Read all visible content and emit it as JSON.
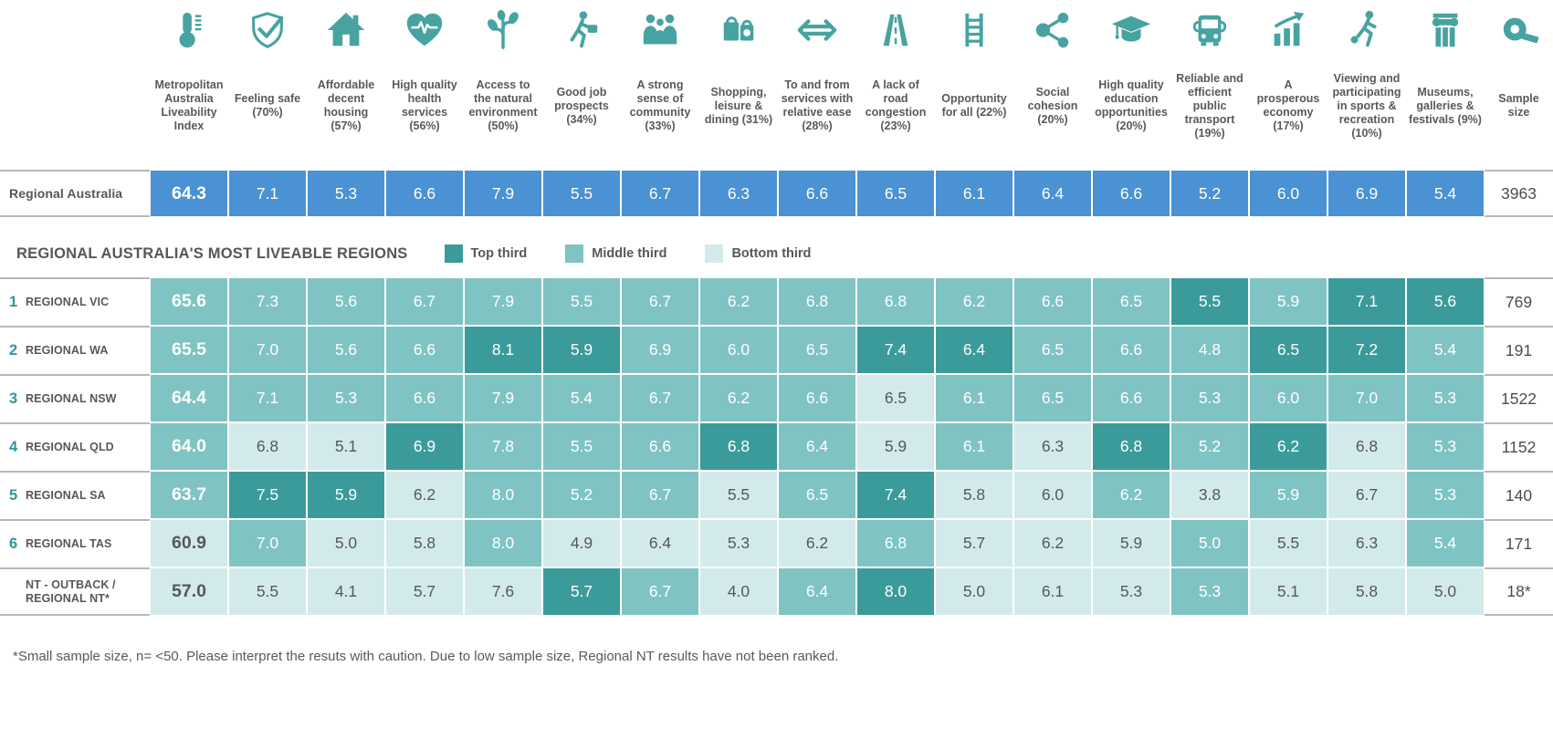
{
  "legend": {
    "title": "REGIONAL AUSTRALIA'S MOST LIVEABLE REGIONS",
    "items": [
      {
        "label": "Top third",
        "tier": "top"
      },
      {
        "label": "Middle third",
        "tier": "middle"
      },
      {
        "label": "Bottom third",
        "tier": "bottom"
      }
    ]
  },
  "colors": {
    "national_blue": "#4a92d3",
    "top_third": "#3b9b9b",
    "middle_third": "#7fc4c3",
    "bottom_third": "#d3eaea",
    "icon_teal": "#47a3a1",
    "text_gray": "#58595b"
  },
  "footnote": "*Small sample size, n= <50. Please interpret the resuts with caution. Due to low sample size, Regional NT results have not been ranked.",
  "chart_data": {
    "type": "heatmap",
    "title": "REGIONAL AUSTRALIA'S MOST LIVEABLE REGIONS",
    "legend": [
      "Top third",
      "Middle third",
      "Bottom third"
    ],
    "columns": [
      {
        "label": "Metropolitan Australia Liveability Index",
        "icon": "thermometer-icon"
      },
      {
        "label": "Feeling safe (70%)",
        "icon": "shield-check-icon"
      },
      {
        "label": "Affordable decent housing (57%)",
        "icon": "house-icon"
      },
      {
        "label": "High quality health services (56%)",
        "icon": "heart-pulse-icon"
      },
      {
        "label": "Access to the natural environment (50%)",
        "icon": "sapling-icon"
      },
      {
        "label": "Good job prospects (34%)",
        "icon": "job-runner-icon"
      },
      {
        "label": "A strong sense of community (33%)",
        "icon": "community-icon"
      },
      {
        "label": "Shopping, leisure & dining (31%)",
        "icon": "shopping-bags-icon"
      },
      {
        "label": "To and from services with relative ease (28%)",
        "icon": "double-arrow-icon"
      },
      {
        "label": "A lack of road congestion (23%)",
        "icon": "road-icon"
      },
      {
        "label": "Opportunity for all (22%)",
        "icon": "ladder-icon"
      },
      {
        "label": "Social cohesion (20%)",
        "icon": "share-nodes-icon"
      },
      {
        "label": "High quality education opportunities (20%)",
        "icon": "graduation-cap-icon"
      },
      {
        "label": "Reliable and efficient public transport (19%)",
        "icon": "bus-icon"
      },
      {
        "label": "A prosperous economy (17%)",
        "icon": "growth-chart-icon"
      },
      {
        "label": "Viewing and participating in sports & recreation (10%)",
        "icon": "soccer-player-icon"
      },
      {
        "label": "Museums, galleries & festivals (9%)",
        "icon": "pillar-icon"
      },
      {
        "label": "Sample size",
        "icon": "tape-measure-icon"
      }
    ],
    "national": {
      "label": "Regional Australia",
      "values": [
        64.3,
        7.1,
        5.3,
        6.6,
        7.9,
        5.5,
        6.7,
        6.3,
        6.6,
        6.5,
        6.1,
        6.4,
        6.6,
        5.2,
        6.0,
        6.9,
        5.4
      ],
      "sample": "3963"
    },
    "rows": [
      {
        "rank": "1",
        "label": "REGIONAL VIC",
        "values": [
          65.6,
          7.3,
          5.6,
          6.7,
          7.9,
          5.5,
          6.7,
          6.2,
          6.8,
          6.8,
          6.2,
          6.6,
          6.5,
          5.5,
          5.9,
          7.1,
          5.6
        ],
        "tiers": [
          "middle",
          "middle",
          "middle",
          "middle",
          "middle",
          "middle",
          "middle",
          "middle",
          "middle",
          "middle",
          "middle",
          "middle",
          "middle",
          "top",
          "middle",
          "top",
          "top"
        ],
        "sample": "769"
      },
      {
        "rank": "2",
        "label": "REGIONAL WA",
        "values": [
          65.5,
          7.0,
          5.6,
          6.6,
          8.1,
          5.9,
          6.9,
          6.0,
          6.5,
          7.4,
          6.4,
          6.5,
          6.6,
          4.8,
          6.5,
          7.2,
          5.4
        ],
        "tiers": [
          "middle",
          "middle",
          "middle",
          "middle",
          "top",
          "top",
          "middle",
          "middle",
          "middle",
          "top",
          "top",
          "middle",
          "middle",
          "middle",
          "top",
          "top",
          "middle"
        ],
        "sample": "191"
      },
      {
        "rank": "3",
        "label": "REGIONAL NSW",
        "values": [
          64.4,
          7.1,
          5.3,
          6.6,
          7.9,
          5.4,
          6.7,
          6.2,
          6.6,
          6.5,
          6.1,
          6.5,
          6.6,
          5.3,
          6.0,
          7.0,
          5.3
        ],
        "tiers": [
          "middle",
          "middle",
          "middle",
          "middle",
          "middle",
          "middle",
          "middle",
          "middle",
          "middle",
          "bottom",
          "middle",
          "middle",
          "middle",
          "middle",
          "middle",
          "middle",
          "middle"
        ],
        "sample": "1522"
      },
      {
        "rank": "4",
        "label": "REGIONAL QLD",
        "values": [
          64.0,
          6.8,
          5.1,
          6.9,
          7.8,
          5.5,
          6.6,
          6.8,
          6.4,
          5.9,
          6.1,
          6.3,
          6.8,
          5.2,
          6.2,
          6.8,
          5.3
        ],
        "tiers": [
          "middle",
          "bottom",
          "bottom",
          "top",
          "middle",
          "middle",
          "middle",
          "top",
          "middle",
          "bottom",
          "middle",
          "bottom",
          "top",
          "middle",
          "top",
          "bottom",
          "middle"
        ],
        "sample": "1152"
      },
      {
        "rank": "5",
        "label": "REGIONAL SA",
        "values": [
          63.7,
          7.5,
          5.9,
          6.2,
          8.0,
          5.2,
          6.7,
          5.5,
          6.5,
          7.4,
          5.8,
          6.0,
          6.2,
          3.8,
          5.9,
          6.7,
          5.3
        ],
        "tiers": [
          "middle",
          "top",
          "top",
          "bottom",
          "middle",
          "middle",
          "middle",
          "bottom",
          "middle",
          "top",
          "bottom",
          "bottom",
          "middle",
          "bottom",
          "middle",
          "bottom",
          "middle"
        ],
        "sample": "140"
      },
      {
        "rank": "6",
        "label": "REGIONAL TAS",
        "values": [
          60.9,
          7.0,
          5.0,
          5.8,
          8.0,
          4.9,
          6.4,
          5.3,
          6.2,
          6.8,
          5.7,
          6.2,
          5.9,
          5.0,
          5.5,
          6.3,
          5.4
        ],
        "tiers": [
          "bottom",
          "middle",
          "bottom",
          "bottom",
          "middle",
          "bottom",
          "bottom",
          "bottom",
          "bottom",
          "middle",
          "bottom",
          "bottom",
          "bottom",
          "middle",
          "bottom",
          "bottom",
          "middle"
        ],
        "sample": "171"
      },
      {
        "rank": "",
        "label": "NT - OUTBACK / REGIONAL NT*",
        "values": [
          57.0,
          5.5,
          4.1,
          5.7,
          7.6,
          5.7,
          6.7,
          4.0,
          6.4,
          8.0,
          5.0,
          6.1,
          5.3,
          5.3,
          5.1,
          5.8,
          5.0
        ],
        "tiers": [
          "bottom",
          "bottom",
          "bottom",
          "bottom",
          "bottom",
          "top",
          "middle",
          "bottom",
          "middle",
          "top",
          "bottom",
          "bottom",
          "bottom",
          "middle",
          "bottom",
          "bottom",
          "bottom"
        ],
        "sample": "18*"
      }
    ]
  }
}
